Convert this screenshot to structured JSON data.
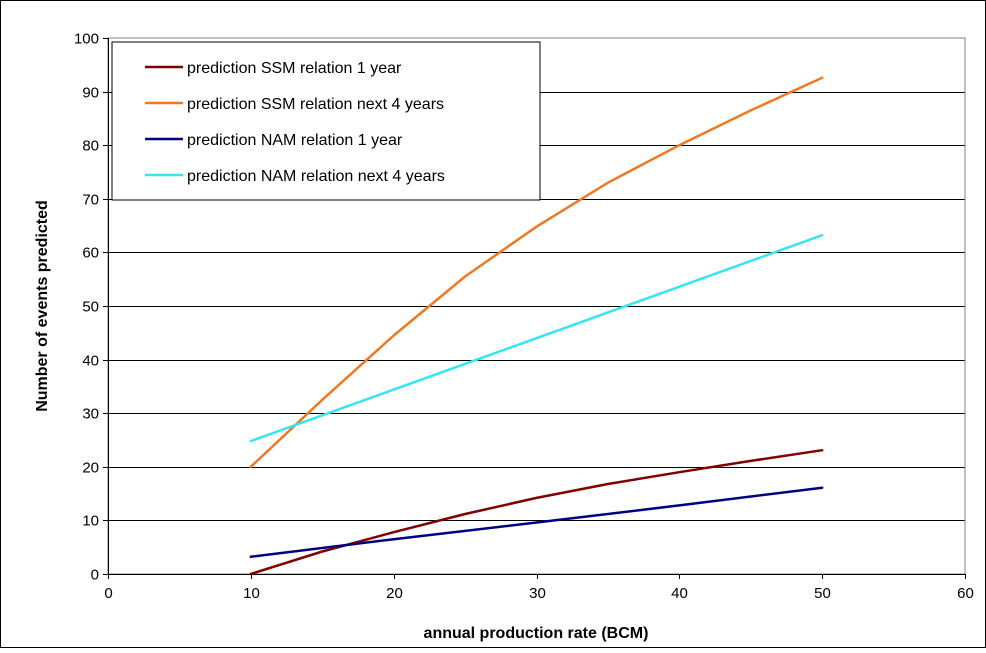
{
  "chart_data": {
    "type": "line",
    "title": "",
    "xlabel": "annual production rate (BCM)",
    "ylabel": "Number of events predicted",
    "xlim": [
      0,
      60
    ],
    "ylim": [
      0,
      100
    ],
    "xticks": [
      0,
      10,
      20,
      30,
      40,
      50,
      60
    ],
    "yticks": [
      0,
      10,
      20,
      30,
      40,
      50,
      60,
      70,
      80,
      90,
      100
    ],
    "grid": "horizontal",
    "legend_position": "top-left",
    "series": [
      {
        "name": "prediction SSM relation 1 year",
        "color": "#800000",
        "points": [
          [
            10,
            0
          ],
          [
            15,
            4.2
          ],
          [
            20,
            7.8
          ],
          [
            25,
            11.2
          ],
          [
            30,
            14.2
          ],
          [
            35,
            16.8
          ],
          [
            40,
            19.0
          ],
          [
            45,
            21.1
          ],
          [
            50,
            23.1
          ]
        ]
      },
      {
        "name": "prediction SSM relation next 4 years",
        "color": "#F07820",
        "points": [
          [
            10,
            20
          ],
          [
            15,
            32.5
          ],
          [
            20,
            44.5
          ],
          [
            25,
            55.5
          ],
          [
            30,
            64.8
          ],
          [
            35,
            73.0
          ],
          [
            40,
            80.0
          ],
          [
            45,
            86.5
          ],
          [
            50,
            92.6
          ]
        ]
      },
      {
        "name": "prediction NAM relation 1 year",
        "color": "#000080",
        "points": [
          [
            10,
            3.2
          ],
          [
            20,
            6.5
          ],
          [
            30,
            9.6
          ],
          [
            40,
            12.8
          ],
          [
            50,
            16.1
          ]
        ]
      },
      {
        "name": "prediction NAM relation next 4 years",
        "color": "#33E6F0",
        "points": [
          [
            10,
            24.8
          ],
          [
            20,
            34.4
          ],
          [
            30,
            44.0
          ],
          [
            40,
            53.6
          ],
          [
            50,
            63.2
          ]
        ]
      }
    ]
  }
}
